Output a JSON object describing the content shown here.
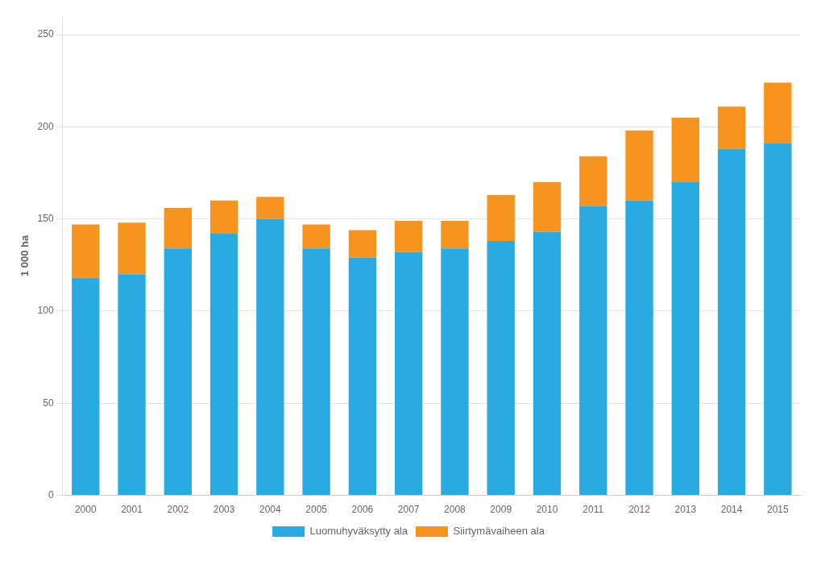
{
  "chart_data": {
    "type": "bar",
    "stacked": true,
    "ylabel": "1 000 ha",
    "categories": [
      "2000",
      "2001",
      "2002",
      "2003",
      "2004",
      "2005",
      "2006",
      "2007",
      "2008",
      "2009",
      "2010",
      "2011",
      "2012",
      "2013",
      "2014",
      "2015"
    ],
    "series": [
      {
        "name": "Luomuhyväksytty ala",
        "color": "#29ABE2",
        "values": [
          118,
          120,
          134,
          142,
          150,
          134,
          129,
          132,
          134,
          138,
          143,
          157,
          160,
          170,
          188,
          191
        ]
      },
      {
        "name": "Siirtymävaiheen ala",
        "color": "#F7941D",
        "values": [
          29,
          28,
          22,
          18,
          12,
          13,
          15,
          17,
          15,
          25,
          27,
          27,
          38,
          35,
          23,
          33
        ]
      }
    ],
    "ylim": [
      0,
      260
    ],
    "yticks": [
      0,
      50,
      100,
      150,
      200,
      250
    ],
    "grid": true,
    "legend": "bottom"
  }
}
